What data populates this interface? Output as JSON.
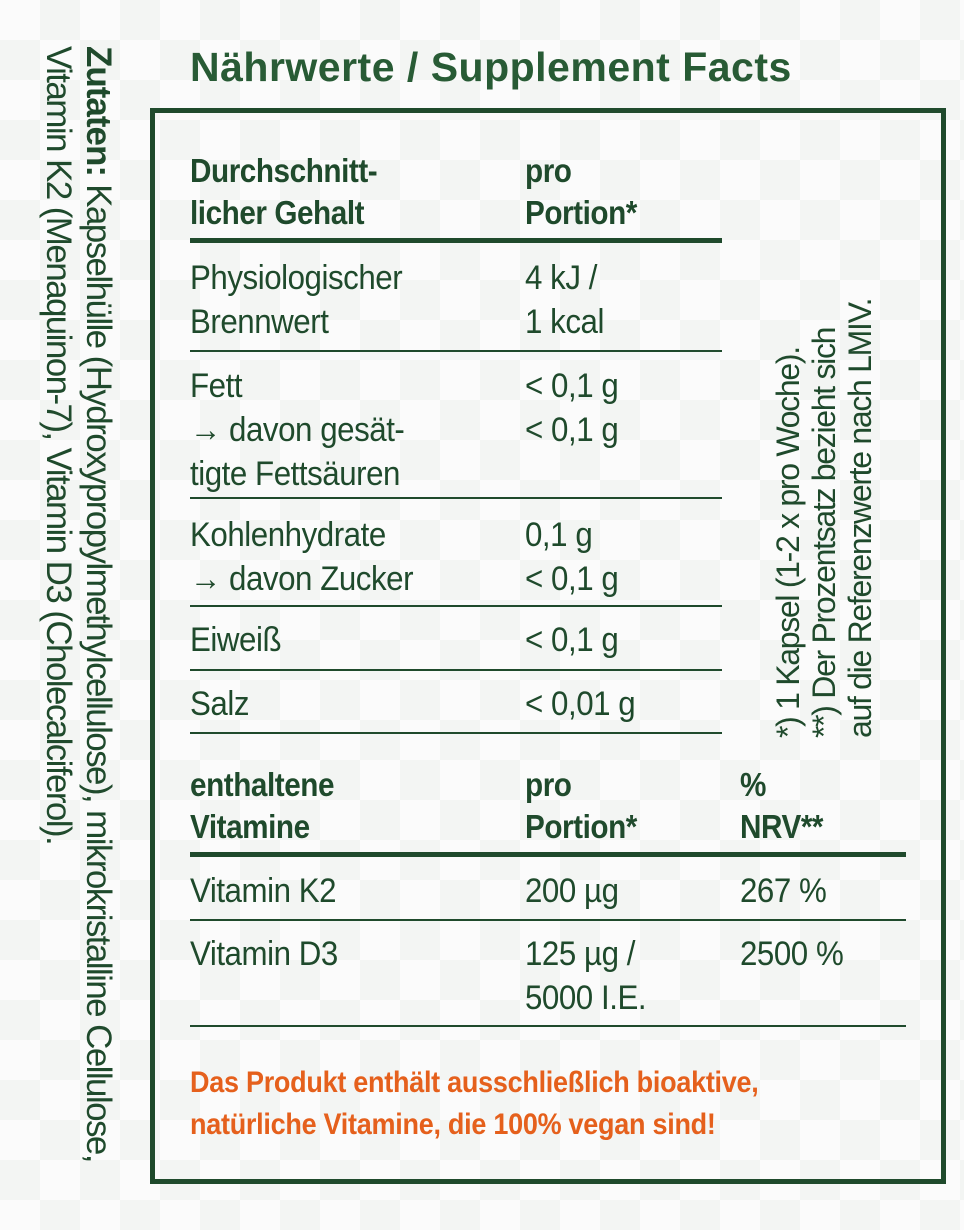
{
  "title": "Nährwerte / Supplement Facts",
  "ingredients": {
    "label": "Zutaten:",
    "text": "Kapselhülle (Hydroxypropylmethylcellulose), mikrokristalline Cellulose, Vitamin K2 (Menaquinon-7), Vitamin D3 (Cholecalciferol)."
  },
  "footnotes": [
    "*) 1 Kapsel (1-2 x pro Woche).",
    "**) Der Prozentsatz bezieht sich",
    "auf die Referenzwerte nach LMIV."
  ],
  "nutrition": {
    "header": {
      "col1": [
        "Durchschnitt-",
        "licher Gehalt"
      ],
      "col2": [
        "pro",
        "Portion*"
      ]
    },
    "rows": [
      {
        "label": [
          "Physiologischer",
          "Brennwert"
        ],
        "value": [
          "4 kJ /",
          "1 kcal"
        ]
      },
      {
        "label": [
          "Fett",
          "→ davon gesät-",
          "tigte Fettsäuren"
        ],
        "value": [
          "< 0,1 g",
          "< 0,1 g"
        ]
      },
      {
        "label": [
          "Kohlenhydrate",
          "→ davon Zucker"
        ],
        "value": [
          "0,1 g",
          "< 0,1 g"
        ]
      },
      {
        "label": [
          "Eiweiß"
        ],
        "value": [
          "< 0,1 g"
        ]
      },
      {
        "label": [
          "Salz"
        ],
        "value": [
          "< 0,01 g"
        ]
      }
    ]
  },
  "vitamins": {
    "header": {
      "col1": [
        "enthaltene",
        "Vitamine"
      ],
      "col2": [
        "pro",
        "Portion*"
      ],
      "col3": [
        "%",
        "NRV**"
      ]
    },
    "rows": [
      {
        "label": "Vitamin K2",
        "value": [
          "200 µg"
        ],
        "nrv": "267 %"
      },
      {
        "label": "Vitamin D3",
        "value": [
          "125 µg /",
          "5000 I.E."
        ],
        "nrv": "2500 %"
      }
    ]
  },
  "claim": [
    "Das Produkt enthält ausschließlich bioaktive,",
    "natürliche Vitamine, die 100% vegan sind!"
  ],
  "colors": {
    "green": "#1f4a2c",
    "orange": "#e5601c"
  }
}
